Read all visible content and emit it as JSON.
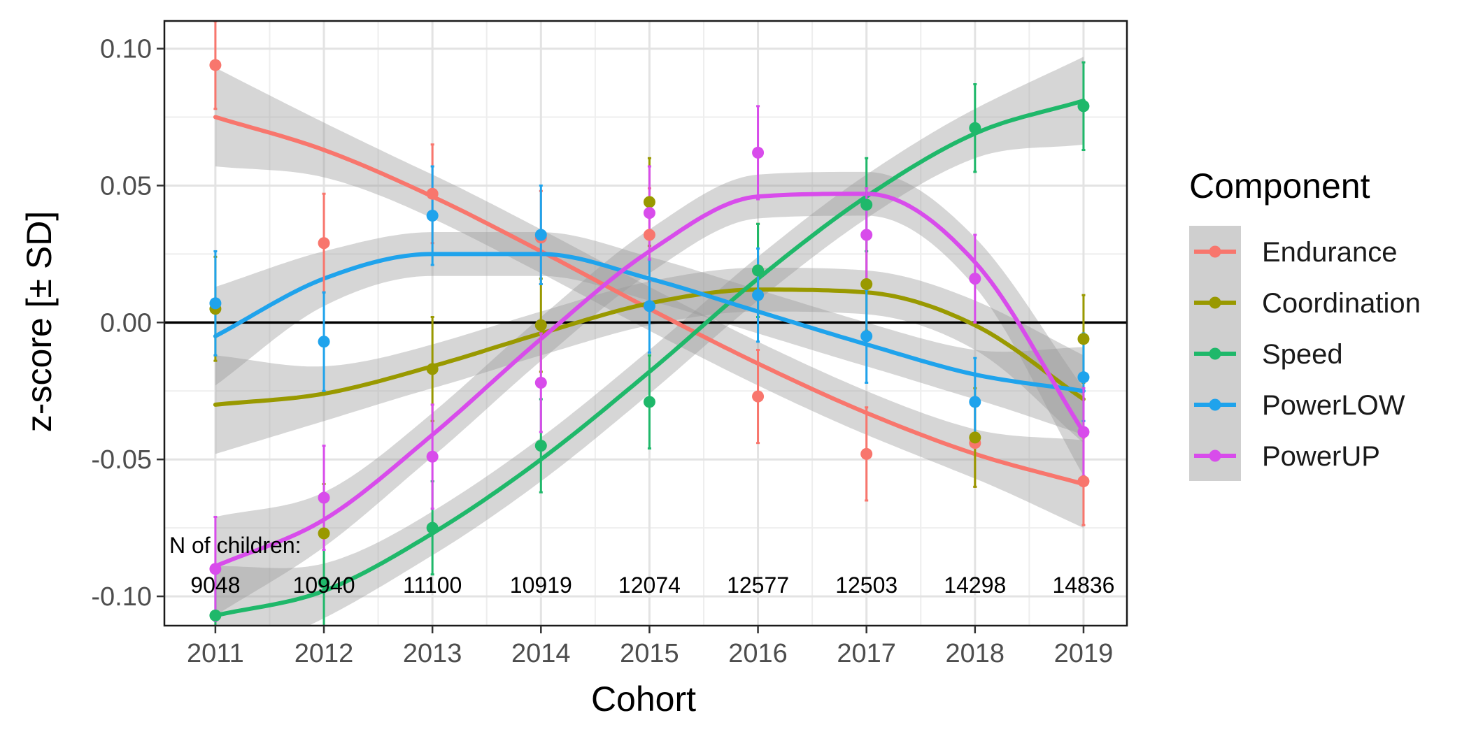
{
  "chart_data": {
    "type": "line",
    "xlabel": "Cohort",
    "ylabel": "z-score [± SD]",
    "x": [
      2011,
      2012,
      2013,
      2014,
      2015,
      2016,
      2017,
      2018,
      2019
    ],
    "xlim": [
      2010.53,
      2019.4
    ],
    "ylim": [
      -0.1107,
      0.1101
    ],
    "y_ticks": [
      0.1,
      0.05,
      0.0,
      -0.05,
      -0.1
    ],
    "y_tick_labels": [
      "0.10",
      "0.05",
      "0.00",
      "-0.05",
      "-0.10"
    ],
    "hline": 0.0,
    "grid": true,
    "legend": {
      "title": "Component",
      "position": "right"
    },
    "series": [
      {
        "name": "Endurance",
        "color": "#F8766D",
        "points": [
          0.094,
          0.029,
          0.047,
          0.031,
          0.032,
          -0.027,
          -0.048,
          -0.044,
          -0.058
        ],
        "errors": [
          0.016,
          0.018,
          0.018,
          0.017,
          0.017,
          0.017,
          0.017,
          0.016,
          0.016
        ],
        "fit": [
          0.075,
          0.063,
          0.046,
          0.026,
          0.005,
          -0.015,
          -0.033,
          -0.048,
          -0.059
        ],
        "band": [
          0.018,
          0.01,
          0.008,
          0.008,
          0.008,
          0.008,
          0.008,
          0.009,
          0.016
        ]
      },
      {
        "name": "Coordination",
        "color": "#999900",
        "points": [
          0.005,
          -0.077,
          -0.017,
          -0.001,
          0.044,
          0.019,
          0.014,
          -0.042,
          -0.006
        ],
        "errors": [
          0.019,
          0.018,
          0.019,
          0.017,
          0.016,
          0.017,
          0.017,
          0.018,
          0.016
        ],
        "fit": [
          -0.03,
          -0.026,
          -0.016,
          -0.004,
          0.007,
          0.012,
          0.011,
          -0.001,
          -0.028
        ],
        "band": [
          0.018,
          0.01,
          0.008,
          0.008,
          0.008,
          0.008,
          0.008,
          0.009,
          0.016
        ]
      },
      {
        "name": "Speed",
        "color": "#1FB86A",
        "points": [
          -0.107,
          -0.095,
          -0.075,
          -0.045,
          -0.029,
          0.019,
          0.043,
          0.071,
          0.079
        ],
        "errors": [
          0.017,
          0.017,
          0.017,
          0.017,
          0.017,
          0.017,
          0.017,
          0.016,
          0.016
        ],
        "fit": [
          -0.107,
          -0.098,
          -0.077,
          -0.05,
          -0.018,
          0.016,
          0.046,
          0.069,
          0.081
        ],
        "band": [
          0.018,
          0.01,
          0.008,
          0.008,
          0.008,
          0.008,
          0.008,
          0.009,
          0.016
        ]
      },
      {
        "name": "PowerLOW",
        "color": "#1FA3EC",
        "points": [
          0.007,
          -0.007,
          0.039,
          0.032,
          0.006,
          0.01,
          -0.005,
          -0.029,
          -0.02
        ],
        "errors": [
          0.019,
          0.018,
          0.018,
          0.018,
          0.017,
          0.017,
          0.017,
          0.016,
          0.016
        ],
        "fit": [
          -0.005,
          0.016,
          0.025,
          0.025,
          0.016,
          0.004,
          -0.008,
          -0.019,
          -0.025
        ],
        "band": [
          0.018,
          0.01,
          0.008,
          0.008,
          0.008,
          0.008,
          0.008,
          0.009,
          0.016
        ]
      },
      {
        "name": "PowerUP",
        "color": "#D84CEB",
        "points": [
          -0.09,
          -0.064,
          -0.049,
          -0.022,
          0.04,
          0.062,
          0.032,
          0.016,
          -0.04
        ],
        "errors": [
          0.019,
          0.019,
          0.019,
          0.018,
          0.017,
          0.017,
          0.017,
          0.016,
          0.016
        ],
        "fit": [
          -0.089,
          -0.072,
          -0.041,
          -0.006,
          0.026,
          0.046,
          0.047,
          0.022,
          -0.04
        ],
        "band": [
          0.018,
          0.01,
          0.008,
          0.008,
          0.008,
          0.008,
          0.008,
          0.009,
          0.016
        ]
      }
    ],
    "annotation": {
      "label": "N of children:",
      "counts": [
        "9048",
        "10940",
        "11100",
        "10919",
        "12074",
        "12577",
        "12503",
        "14298",
        "14836"
      ]
    }
  }
}
